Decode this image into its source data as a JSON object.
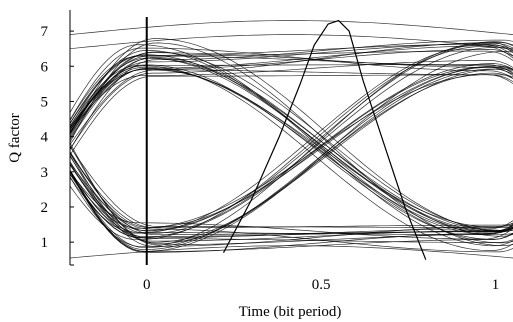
{
  "chart_data": {
    "type": "line",
    "title": "",
    "xlabel": "Time (bit period)",
    "ylabel": "Q factor",
    "xlim": [
      -0.22,
      1.05
    ],
    "ylim": [
      0.35,
      7.6
    ],
    "xticks": [
      {
        "value": 0,
        "label": "0"
      },
      {
        "value": 0.5,
        "label": "0.5"
      },
      {
        "value": 1,
        "label": "1"
      }
    ],
    "yticks": [
      {
        "value": 1,
        "label": "1"
      },
      {
        "value": 2,
        "label": "2"
      },
      {
        "value": 3,
        "label": "3"
      },
      {
        "value": 4,
        "label": "4"
      },
      {
        "value": 5,
        "label": "5"
      },
      {
        "value": 6,
        "label": "6"
      },
      {
        "value": 7,
        "label": "7"
      }
    ],
    "reference_line_x": 0,
    "q_factor_curve": {
      "x": [
        0.22,
        0.3,
        0.38,
        0.44,
        0.48,
        0.52,
        0.55,
        0.58,
        0.62,
        0.68,
        0.74,
        0.8
      ],
      "y": [
        0.7,
        2.2,
        4.0,
        5.5,
        6.6,
        7.2,
        7.3,
        7.0,
        5.6,
        3.8,
        2.0,
        0.5
      ]
    },
    "eye_diagram": {
      "description_levels": {
        "one_level_range": [
          5.6,
          6.8
        ],
        "zero_level_range": [
          0.7,
          1.6
        ],
        "crossing_x": [
          0.0,
          1.0
        ],
        "crossing_y": 3.8
      }
    }
  }
}
